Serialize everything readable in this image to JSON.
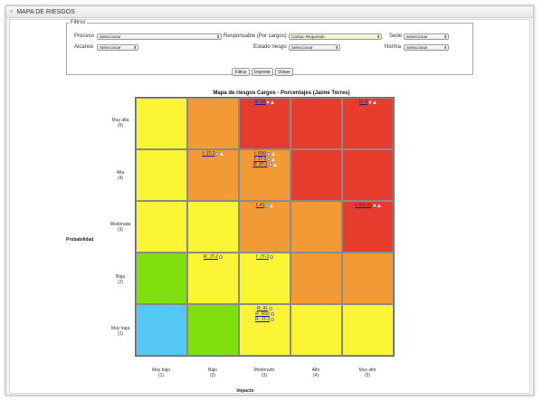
{
  "header": {
    "title": "MAPA DE RIESGOS"
  },
  "filters": {
    "legend": "Filtros",
    "proceso": {
      "label": "Proceso",
      "value": "Seleccionar"
    },
    "responsable": {
      "label": "Responsable (Por cargos)",
      "value": "Campo Requerido"
    },
    "sede": {
      "label": "Sede",
      "value": "Seleccionar"
    },
    "alcance": {
      "label": "Alcance",
      "value": "Seleccionar"
    },
    "estado": {
      "label": "Estado riesgo",
      "value": "Seleccionar"
    },
    "norma": {
      "label": "Norma",
      "value": "Seleccionar"
    },
    "buttons": {
      "filtrar": "Filtrar",
      "imprimir": "Imprimir",
      "volver": "Volver"
    }
  },
  "map": {
    "title": "Mapa de riesgos Cargos - Porcentajes (Jaime Torres)",
    "y_axis_label": "Probabilidad",
    "x_axis_label": "Impacto",
    "row_labels": [
      {
        "name": "Muy alta",
        "level": "(5)"
      },
      {
        "name": "Alta",
        "level": "(4)"
      },
      {
        "name": "Moderada",
        "level": "(3)"
      },
      {
        "name": "Baja",
        "level": "(2)"
      },
      {
        "name": "Muy baja",
        "level": "(1)"
      }
    ],
    "col_labels": [
      {
        "name": "Muy bajo",
        "level": "(1)"
      },
      {
        "name": "Bajo",
        "level": "(2)"
      },
      {
        "name": "Moderado",
        "level": "(3)"
      },
      {
        "name": "Alto",
        "level": "(4)"
      },
      {
        "name": "Muy alto",
        "level": "(5)"
      }
    ],
    "colors": {
      "yellow": "#fbf535",
      "orange": "#f29a35",
      "red": "#e53c2e",
      "green": "#7fe00d",
      "blue": "#55c7f5"
    },
    "cells": [
      [
        {
          "color": "yellow",
          "tags": []
        },
        {
          "color": "orange",
          "tags": []
        },
        {
          "color": "red",
          "tags": [
            {
              "text": "R: 55",
              "icons": [
                "circle",
                "triangle"
              ]
            }
          ]
        },
        {
          "color": "red",
          "tags": []
        },
        {
          "color": "red",
          "tags": [
            {
              "text": "R: 9",
              "icons": [
                "circle",
                "triangle"
              ]
            }
          ]
        }
      ],
      [
        {
          "color": "yellow",
          "tags": []
        },
        {
          "color": "orange",
          "tags": [
            {
              "text": "I: JT-2",
              "icons": [
                "circle",
                "triangle"
              ]
            }
          ]
        },
        {
          "color": "orange",
          "tags": [
            {
              "text": "I: R50",
              "icons": [
                "circle",
                "triangle"
              ]
            },
            {
              "text": "I: JT-1",
              "icons": [
                "circle",
                "triangle"
              ]
            },
            {
              "text": "R: JT-1",
              "icons": [
                "circle",
                "triangle"
              ]
            }
          ]
        },
        {
          "color": "red",
          "tags": []
        },
        {
          "color": "red",
          "tags": []
        }
      ],
      [
        {
          "color": "yellow",
          "tags": []
        },
        {
          "color": "yellow",
          "tags": []
        },
        {
          "color": "orange",
          "tags": [
            {
              "text": "I: 41",
              "icons": [
                "circle",
                "triangle"
              ]
            }
          ]
        },
        {
          "color": "orange",
          "tags": []
        },
        {
          "color": "red",
          "tags": [
            {
              "text": "I: EN-00",
              "icons": [
                "circle",
                "triangle"
              ]
            }
          ]
        }
      ],
      [
        {
          "color": "green",
          "tags": []
        },
        {
          "color": "yellow",
          "tags": [
            {
              "text": "R: JT-2",
              "icons": [
                "circle"
              ]
            }
          ]
        },
        {
          "color": "yellow",
          "tags": [
            {
              "text": "I: JT-3",
              "icons": [
                "circle"
              ]
            }
          ]
        },
        {
          "color": "orange",
          "tags": []
        },
        {
          "color": "orange",
          "tags": []
        }
      ],
      [
        {
          "color": "blue",
          "tags": []
        },
        {
          "color": "green",
          "tags": []
        },
        {
          "color": "yellow",
          "tags": [
            {
              "text": "R: 41",
              "icons": [
                "circle"
              ]
            },
            {
              "text": "R: R50",
              "icons": [
                "circle"
              ]
            },
            {
              "text": "R: JT-3",
              "icons": [
                "circle"
              ]
            }
          ]
        },
        {
          "color": "yellow",
          "tags": []
        },
        {
          "color": "yellow",
          "tags": []
        }
      ]
    ]
  }
}
